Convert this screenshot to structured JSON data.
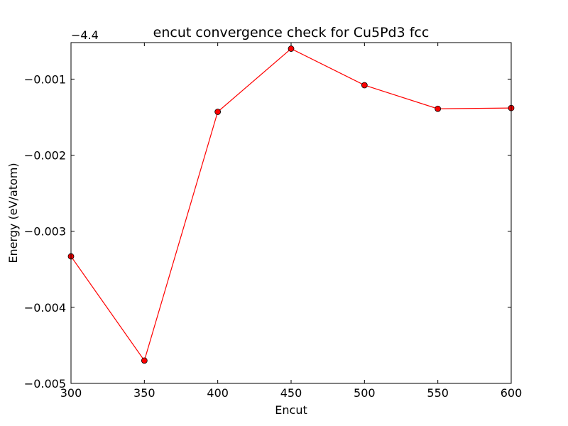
{
  "chart_data": {
    "type": "line",
    "title": "encut convergence check for Cu5Pd3 fcc",
    "xlabel": "Encut",
    "ylabel": "Energy (eV/atom)",
    "y_offset_label": "−4.4",
    "xlim": [
      300,
      600
    ],
    "ylim": [
      -0.005,
      -0.00052
    ],
    "xticks": [
      300,
      350,
      400,
      450,
      500,
      550,
      600
    ],
    "yticks": [
      {
        "value": -0.005,
        "label": "−0.005"
      },
      {
        "value": -0.004,
        "label": "−0.004"
      },
      {
        "value": -0.003,
        "label": "−0.003"
      },
      {
        "value": -0.002,
        "label": "−0.002"
      },
      {
        "value": -0.001,
        "label": "−0.001"
      }
    ],
    "grid": false,
    "series": [
      {
        "color": "#ff0000",
        "marker_color": "#ff0000",
        "x": [
          300,
          350,
          400,
          450,
          500,
          550,
          600
        ],
        "y": [
          -0.00333,
          -0.0047,
          -0.00143,
          -0.0006,
          -0.00108,
          -0.00139,
          -0.00138
        ]
      }
    ]
  }
}
